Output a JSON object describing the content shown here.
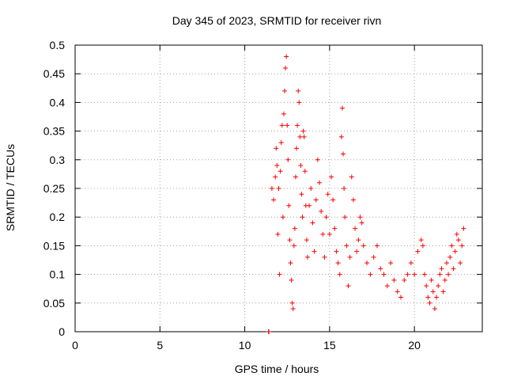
{
  "chart_data": {
    "type": "scatter",
    "title": "Day 345 of 2023, SRMTID for receiver rivn",
    "xlabel": "GPS time / hours",
    "ylabel": "SRMTID / TECUs",
    "xlim": [
      0,
      24
    ],
    "ylim": [
      0,
      0.5
    ],
    "x_ticks": [
      0,
      5,
      10,
      15,
      20
    ],
    "x_tick_labels": [
      "0",
      "5",
      "10",
      "15",
      "20"
    ],
    "y_ticks": [
      0,
      0.05,
      0.1,
      0.15,
      0.2,
      0.25,
      0.3,
      0.35,
      0.4,
      0.45,
      0.5
    ],
    "y_tick_labels": [
      "0",
      "0.05",
      "0.1",
      "0.15",
      "0.2",
      "0.25",
      "0.3",
      "0.35",
      "0.4",
      "0.45",
      "0.5"
    ],
    "grid": true,
    "marker": "+",
    "series": [
      {
        "name": "SRMTID",
        "color": "#ff0000",
        "points": [
          [
            11.4,
            0.0
          ],
          [
            11.42,
            0.0
          ],
          [
            11.6,
            0.25
          ],
          [
            11.7,
            0.23
          ],
          [
            11.8,
            0.27
          ],
          [
            11.85,
            0.32
          ],
          [
            11.9,
            0.29
          ],
          [
            11.95,
            0.17
          ],
          [
            12.0,
            0.25
          ],
          [
            12.05,
            0.1
          ],
          [
            12.1,
            0.28
          ],
          [
            12.15,
            0.33
          ],
          [
            12.2,
            0.36
          ],
          [
            12.25,
            0.2
          ],
          [
            12.3,
            0.38
          ],
          [
            12.35,
            0.42
          ],
          [
            12.4,
            0.46
          ],
          [
            12.45,
            0.48
          ],
          [
            12.5,
            0.36
          ],
          [
            12.55,
            0.3
          ],
          [
            12.6,
            0.22
          ],
          [
            12.65,
            0.16
          ],
          [
            12.7,
            0.12
          ],
          [
            12.75,
            0.09
          ],
          [
            12.8,
            0.05
          ],
          [
            12.85,
            0.04
          ],
          [
            12.9,
            0.15
          ],
          [
            12.95,
            0.18
          ],
          [
            13.0,
            0.27
          ],
          [
            13.05,
            0.32
          ],
          [
            13.1,
            0.36
          ],
          [
            13.15,
            0.42
          ],
          [
            13.2,
            0.4
          ],
          [
            13.25,
            0.34
          ],
          [
            13.3,
            0.29
          ],
          [
            13.35,
            0.24
          ],
          [
            13.4,
            0.2
          ],
          [
            13.45,
            0.35
          ],
          [
            13.5,
            0.34
          ],
          [
            13.55,
            0.28
          ],
          [
            13.6,
            0.22
          ],
          [
            13.65,
            0.16
          ],
          [
            13.7,
            0.13
          ],
          [
            13.8,
            0.22
          ],
          [
            13.9,
            0.25
          ],
          [
            14.0,
            0.19
          ],
          [
            14.1,
            0.14
          ],
          [
            14.2,
            0.23
          ],
          [
            14.3,
            0.3
          ],
          [
            14.4,
            0.26
          ],
          [
            14.5,
            0.21
          ],
          [
            14.6,
            0.17
          ],
          [
            14.7,
            0.13
          ],
          [
            14.8,
            0.2
          ],
          [
            14.9,
            0.24
          ],
          [
            15.0,
            0.17
          ],
          [
            15.1,
            0.27
          ],
          [
            15.2,
            0.23
          ],
          [
            15.3,
            0.18
          ],
          [
            15.4,
            0.14
          ],
          [
            15.5,
            0.12
          ],
          [
            15.6,
            0.1
          ],
          [
            15.7,
            0.34
          ],
          [
            15.75,
            0.39
          ],
          [
            15.8,
            0.31
          ],
          [
            15.85,
            0.25
          ],
          [
            15.9,
            0.2
          ],
          [
            16.0,
            0.15
          ],
          [
            16.1,
            0.08
          ],
          [
            16.2,
            0.13
          ],
          [
            16.3,
            0.27
          ],
          [
            16.4,
            0.23
          ],
          [
            16.5,
            0.18
          ],
          [
            16.6,
            0.14
          ],
          [
            16.7,
            0.16
          ],
          [
            16.8,
            0.2
          ],
          [
            16.9,
            0.19
          ],
          [
            17.0,
            0.15
          ],
          [
            17.2,
            0.12
          ],
          [
            17.4,
            0.1
          ],
          [
            17.6,
            0.13
          ],
          [
            17.8,
            0.15
          ],
          [
            18.0,
            0.11
          ],
          [
            18.2,
            0.1
          ],
          [
            18.4,
            0.08
          ],
          [
            18.6,
            0.12
          ],
          [
            18.8,
            0.09
          ],
          [
            19.0,
            0.07
          ],
          [
            19.2,
            0.06
          ],
          [
            19.4,
            0.09
          ],
          [
            19.6,
            0.1
          ],
          [
            19.8,
            0.12
          ],
          [
            20.0,
            0.1
          ],
          [
            20.2,
            0.14
          ],
          [
            20.4,
            0.16
          ],
          [
            20.5,
            0.15
          ],
          [
            20.6,
            0.1
          ],
          [
            20.7,
            0.08
          ],
          [
            20.8,
            0.06
          ],
          [
            20.9,
            0.05
          ],
          [
            21.0,
            0.09
          ],
          [
            21.1,
            0.07
          ],
          [
            21.2,
            0.04
          ],
          [
            21.3,
            0.06
          ],
          [
            21.4,
            0.08
          ],
          [
            21.5,
            0.1
          ],
          [
            21.6,
            0.11
          ],
          [
            21.7,
            0.07
          ],
          [
            21.8,
            0.09
          ],
          [
            21.9,
            0.12
          ],
          [
            22.0,
            0.1
          ],
          [
            22.1,
            0.13
          ],
          [
            22.2,
            0.15
          ],
          [
            22.3,
            0.11
          ],
          [
            22.4,
            0.14
          ],
          [
            22.5,
            0.17
          ],
          [
            22.6,
            0.16
          ],
          [
            22.7,
            0.12
          ],
          [
            22.8,
            0.15
          ],
          [
            22.9,
            0.18
          ]
        ]
      }
    ]
  }
}
